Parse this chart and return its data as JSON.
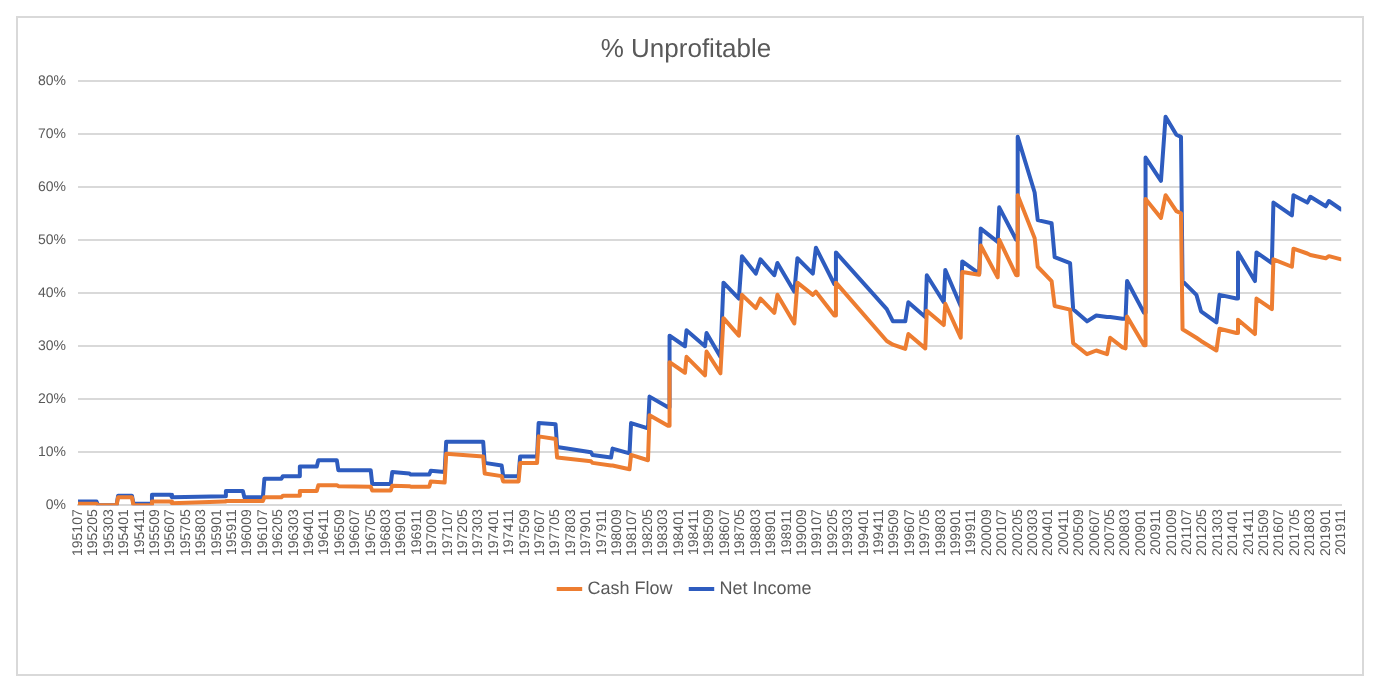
{
  "chart_data": {
    "type": "line",
    "title": "% Unprofitable",
    "x": [
      "1951-07",
      "1952-07",
      "1952-08",
      "1953-08",
      "1953-09",
      "1954-06",
      "1954-07",
      "1955-06",
      "1955-07",
      "1956-07",
      "1956-08",
      "1959-06",
      "1959-07",
      "1960-06",
      "1960-07",
      "1961-07",
      "1961-08",
      "1962-07",
      "1962-08",
      "1963-06",
      "1963-07",
      "1964-06",
      "1964-07",
      "1965-07",
      "1965-08",
      "1967-05",
      "1967-06",
      "1968-06",
      "1968-07",
      "1969-06",
      "1969-07",
      "1970-07",
      "1970-08",
      "1971-05",
      "1971-06",
      "1973-06",
      "1973-07",
      "1974-06",
      "1974-07",
      "1975-05",
      "1975-06",
      "1976-05",
      "1976-06",
      "1977-05",
      "1977-06",
      "1979-04",
      "1979-05",
      "1980-05",
      "1980-06",
      "1981-05",
      "1981-06",
      "1982-05",
      "1982-06",
      "1983-06",
      "1983-07",
      "1984-05",
      "1984-06",
      "1985-06",
      "1985-07",
      "1986-04",
      "1986-06",
      "1987-04",
      "1987-06",
      "1988-03",
      "1988-06",
      "1989-03",
      "1989-05",
      "1990-04",
      "1990-06",
      "1991-04",
      "1991-06",
      "1992-06",
      "1992-07",
      "1995-04",
      "1995-08",
      "1996-04",
      "1996-06",
      "1997-05",
      "1997-06",
      "1998-05",
      "1998-06",
      "1999-04",
      "1999-05",
      "2000-04",
      "2000-05",
      "2001-04",
      "2001-05",
      "2002-04",
      "2002-05",
      "2003-04",
      "2003-06",
      "2004-03",
      "2004-05",
      "2005-03",
      "2005-05",
      "2006-02",
      "2006-08",
      "2007-03",
      "2007-05",
      "2008-01",
      "2008-03",
      "2008-04",
      "2009-03",
      "2009-04",
      "2010-02",
      "2010-05",
      "2010-12",
      "2011-03",
      "2011-04",
      "2012-01",
      "2012-04",
      "2013-02",
      "2013-04",
      "2014-03",
      "2014-04",
      "2015-03",
      "2015-04",
      "2016-02",
      "2016-03",
      "2017-03",
      "2017-04",
      "2018-01",
      "2018-03",
      "2019-01",
      "2019-03",
      "2019-11"
    ],
    "series": [
      {
        "name": "Cash Flow",
        "color": "#ed7d31",
        "values": [
          0.3,
          0.3,
          0,
          0,
          1.5,
          1.5,
          0,
          0,
          0.7,
          0.7,
          0.4,
          0.7,
          0.8,
          0.8,
          0.8,
          0.8,
          1.5,
          1.5,
          1.8,
          1.8,
          2.7,
          2.7,
          3.8,
          3.8,
          3.6,
          3.5,
          2.8,
          2.8,
          3.7,
          3.6,
          3.5,
          3.5,
          4.5,
          4.3,
          9.7,
          9.2,
          6,
          5.5,
          4.5,
          4.5,
          8,
          8,
          13,
          12.5,
          9,
          8.3,
          8,
          7.5,
          7.5,
          6.8,
          9.5,
          8.5,
          17,
          15,
          27,
          25,
          28,
          24.5,
          29,
          24.9,
          35.3,
          32,
          39.7,
          37.2,
          39,
          36.3,
          39.7,
          34.3,
          42,
          39.7,
          40.3,
          35.8,
          42,
          31,
          30.3,
          29.5,
          32.3,
          29.6,
          36.7,
          34,
          38,
          31.6,
          44,
          43.5,
          49,
          43,
          50.1,
          43.4,
          58.5,
          50.4,
          45,
          42.3,
          37.6,
          36.9,
          30.6,
          28.5,
          29.2,
          28.5,
          31.6,
          29.8,
          29.6,
          35.6,
          30.2,
          57.8,
          54.2,
          58.5,
          55.5,
          55.1,
          33.2,
          31.6,
          31,
          29.2,
          33.3,
          32.5,
          35,
          32.3,
          39,
          37,
          46.4,
          45,
          48.4,
          47.5,
          47.2,
          46.6,
          47,
          46.4
        ]
      },
      {
        "name": "Net Income",
        "color": "#2e5cbf",
        "values": [
          0.7,
          0.7,
          0,
          0,
          1.8,
          1.8,
          0.3,
          0.3,
          2,
          2,
          1.5,
          1.7,
          2.7,
          2.7,
          1.5,
          1.5,
          5,
          5,
          5.5,
          5.5,
          7.3,
          7.3,
          8.5,
          8.5,
          6.6,
          6.6,
          4,
          4,
          6.3,
          6,
          5.8,
          5.8,
          6.5,
          6.3,
          12,
          12,
          8,
          7.5,
          5.5,
          5.5,
          9.2,
          9.2,
          15.5,
          15.3,
          11,
          10,
          9.5,
          9,
          10.7,
          9.8,
          15.5,
          14.5,
          20.5,
          18.5,
          32,
          30,
          33,
          30,
          32.5,
          28,
          42,
          39,
          47,
          43.7,
          46.4,
          43.4,
          45.7,
          40.3,
          46.6,
          43.7,
          48.6,
          41.7,
          47.7,
          37,
          34.7,
          34.7,
          38.3,
          35.5,
          43.4,
          38.3,
          44.4,
          37.6,
          46,
          43.7,
          52.2,
          49.7,
          56.2,
          50.1,
          69.5,
          59,
          53.8,
          53.2,
          46.8,
          45.7,
          37,
          34.7,
          35.8,
          35.5,
          35.5,
          35.2,
          35.2,
          42.3,
          36.3,
          65.6,
          61.2,
          73.3,
          69.9,
          69.5,
          42.3,
          39.7,
          36.6,
          34.5,
          39.7,
          39,
          47.7,
          42.3,
          47.7,
          45.7,
          57.1,
          54.7,
          58.5,
          57.1,
          58.2,
          56.4,
          57.4,
          55.8
        ]
      }
    ],
    "xlim": [
      "1951-07",
      "2019-11"
    ],
    "xticks": [
      {
        "value": "1951-07",
        "label": "195107"
      },
      {
        "value": "1952-05",
        "label": "195205"
      },
      {
        "value": "1953-03",
        "label": "195303"
      },
      {
        "value": "1954-01",
        "label": "195401"
      },
      {
        "value": "1954-11",
        "label": "195411"
      },
      {
        "value": "1955-09",
        "label": "195509"
      },
      {
        "value": "1956-07",
        "label": "195607"
      },
      {
        "value": "1957-05",
        "label": "195705"
      },
      {
        "value": "1958-03",
        "label": "195803"
      },
      {
        "value": "1959-01",
        "label": "195901"
      },
      {
        "value": "1959-11",
        "label": "195911"
      },
      {
        "value": "1960-09",
        "label": "196009"
      },
      {
        "value": "1961-07",
        "label": "196107"
      },
      {
        "value": "1962-05",
        "label": "196205"
      },
      {
        "value": "1963-03",
        "label": "196303"
      },
      {
        "value": "1964-01",
        "label": "196401"
      },
      {
        "value": "1964-11",
        "label": "196411"
      },
      {
        "value": "1965-09",
        "label": "196509"
      },
      {
        "value": "1966-07",
        "label": "196607"
      },
      {
        "value": "1967-05",
        "label": "196705"
      },
      {
        "value": "1968-03",
        "label": "196803"
      },
      {
        "value": "1969-01",
        "label": "196901"
      },
      {
        "value": "1969-11",
        "label": "196911"
      },
      {
        "value": "1970-09",
        "label": "197009"
      },
      {
        "value": "1971-07",
        "label": "197107"
      },
      {
        "value": "1972-05",
        "label": "197205"
      },
      {
        "value": "1973-03",
        "label": "197303"
      },
      {
        "value": "1974-01",
        "label": "197401"
      },
      {
        "value": "1974-11",
        "label": "197411"
      },
      {
        "value": "1975-09",
        "label": "197509"
      },
      {
        "value": "1976-07",
        "label": "197607"
      },
      {
        "value": "1977-05",
        "label": "197705"
      },
      {
        "value": "1978-03",
        "label": "197803"
      },
      {
        "value": "1979-01",
        "label": "197901"
      },
      {
        "value": "1979-11",
        "label": "197911"
      },
      {
        "value": "1980-09",
        "label": "198009"
      },
      {
        "value": "1981-07",
        "label": "198107"
      },
      {
        "value": "1982-05",
        "label": "198205"
      },
      {
        "value": "1983-03",
        "label": "198303"
      },
      {
        "value": "1984-01",
        "label": "198401"
      },
      {
        "value": "1984-11",
        "label": "198411"
      },
      {
        "value": "1985-09",
        "label": "198509"
      },
      {
        "value": "1986-07",
        "label": "198607"
      },
      {
        "value": "1987-05",
        "label": "198705"
      },
      {
        "value": "1988-03",
        "label": "198803"
      },
      {
        "value": "1989-01",
        "label": "198901"
      },
      {
        "value": "1989-11",
        "label": "198911"
      },
      {
        "value": "1990-09",
        "label": "199009"
      },
      {
        "value": "1991-07",
        "label": "199107"
      },
      {
        "value": "1992-05",
        "label": "199205"
      },
      {
        "value": "1993-03",
        "label": "199303"
      },
      {
        "value": "1994-01",
        "label": "199401"
      },
      {
        "value": "1994-11",
        "label": "199411"
      },
      {
        "value": "1995-09",
        "label": "199509"
      },
      {
        "value": "1996-07",
        "label": "199607"
      },
      {
        "value": "1997-05",
        "label": "199705"
      },
      {
        "value": "1998-03",
        "label": "199803"
      },
      {
        "value": "1999-01",
        "label": "199901"
      },
      {
        "value": "1999-11",
        "label": "199911"
      },
      {
        "value": "2000-09",
        "label": "200009"
      },
      {
        "value": "2001-07",
        "label": "200107"
      },
      {
        "value": "2002-05",
        "label": "200205"
      },
      {
        "value": "2003-03",
        "label": "200303"
      },
      {
        "value": "2004-01",
        "label": "200401"
      },
      {
        "value": "2004-11",
        "label": "200411"
      },
      {
        "value": "2005-09",
        "label": "200509"
      },
      {
        "value": "2006-07",
        "label": "200607"
      },
      {
        "value": "2007-05",
        "label": "200705"
      },
      {
        "value": "2008-03",
        "label": "200803"
      },
      {
        "value": "2009-01",
        "label": "200901"
      },
      {
        "value": "2009-11",
        "label": "200911"
      },
      {
        "value": "2010-09",
        "label": "201009"
      },
      {
        "value": "2011-07",
        "label": "201107"
      },
      {
        "value": "2012-05",
        "label": "201205"
      },
      {
        "value": "2013-03",
        "label": "201303"
      },
      {
        "value": "2014-01",
        "label": "201401"
      },
      {
        "value": "2014-11",
        "label": "201411"
      },
      {
        "value": "2015-09",
        "label": "201509"
      },
      {
        "value": "2016-07",
        "label": "201607"
      },
      {
        "value": "2017-05",
        "label": "201705"
      },
      {
        "value": "2018-03",
        "label": "201803"
      },
      {
        "value": "2019-01",
        "label": "201901"
      },
      {
        "value": "2019-11",
        "label": "201911"
      }
    ],
    "ylim": [
      0,
      80
    ],
    "yticks": [
      {
        "value": 0,
        "label": "0%"
      },
      {
        "value": 10,
        "label": "10%"
      },
      {
        "value": 20,
        "label": "20%"
      },
      {
        "value": 30,
        "label": "30%"
      },
      {
        "value": 40,
        "label": "40%"
      },
      {
        "value": 50,
        "label": "50%"
      },
      {
        "value": 60,
        "label": "60%"
      },
      {
        "value": 70,
        "label": "70%"
      },
      {
        "value": 80,
        "label": "80%"
      }
    ],
    "grid": "y",
    "legend": "bottom",
    "marker": "none",
    "line_style": "solid"
  }
}
